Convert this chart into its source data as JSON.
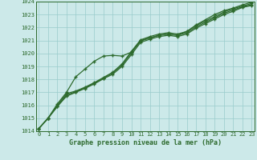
{
  "title": "Graphe pression niveau de la mer (hPa)",
  "xlabel_hours": [
    0,
    1,
    2,
    3,
    4,
    5,
    6,
    7,
    8,
    9,
    10,
    11,
    12,
    13,
    14,
    15,
    16,
    17,
    18,
    19,
    20,
    21,
    22,
    23
  ],
  "ylim": [
    1014,
    1024
  ],
  "xlim": [
    -0.3,
    23.3
  ],
  "yticks": [
    1014,
    1015,
    1016,
    1017,
    1018,
    1019,
    1020,
    1021,
    1022,
    1023,
    1024
  ],
  "bg_color": "#cce9e9",
  "grid_color": "#99cccc",
  "line_color": "#2d6a2d",
  "series_base": [
    1014.2,
    1015.0,
    1015.9,
    1016.7,
    1017.0,
    1017.3,
    1017.65,
    1018.05,
    1018.4,
    1019.0,
    1019.9,
    1020.85,
    1021.1,
    1021.3,
    1021.4,
    1021.3,
    1021.5,
    1021.95,
    1022.3,
    1022.65,
    1023.0,
    1023.25,
    1023.55,
    1023.7
  ],
  "series_mid1": [
    1014.2,
    1015.0,
    1015.9,
    1016.8,
    1017.05,
    1017.35,
    1017.7,
    1018.1,
    1018.5,
    1019.1,
    1020.05,
    1020.95,
    1021.2,
    1021.4,
    1021.5,
    1021.4,
    1021.6,
    1022.05,
    1022.4,
    1022.75,
    1023.1,
    1023.35,
    1023.6,
    1023.75
  ],
  "series_mid2": [
    1014.2,
    1015.0,
    1016.0,
    1016.9,
    1017.1,
    1017.4,
    1017.75,
    1018.15,
    1018.55,
    1019.2,
    1020.15,
    1021.05,
    1021.3,
    1021.5,
    1021.6,
    1021.5,
    1021.7,
    1022.15,
    1022.5,
    1022.85,
    1023.2,
    1023.45,
    1023.65,
    1023.85
  ],
  "series_high": [
    1014.2,
    1015.0,
    1016.1,
    1017.0,
    1018.2,
    1018.8,
    1019.4,
    1019.8,
    1019.85,
    1019.8,
    1020.1,
    1021.0,
    1021.2,
    1021.4,
    1021.5,
    1021.4,
    1021.7,
    1022.2,
    1022.6,
    1023.0,
    1023.3,
    1023.5,
    1023.75,
    1023.95
  ]
}
